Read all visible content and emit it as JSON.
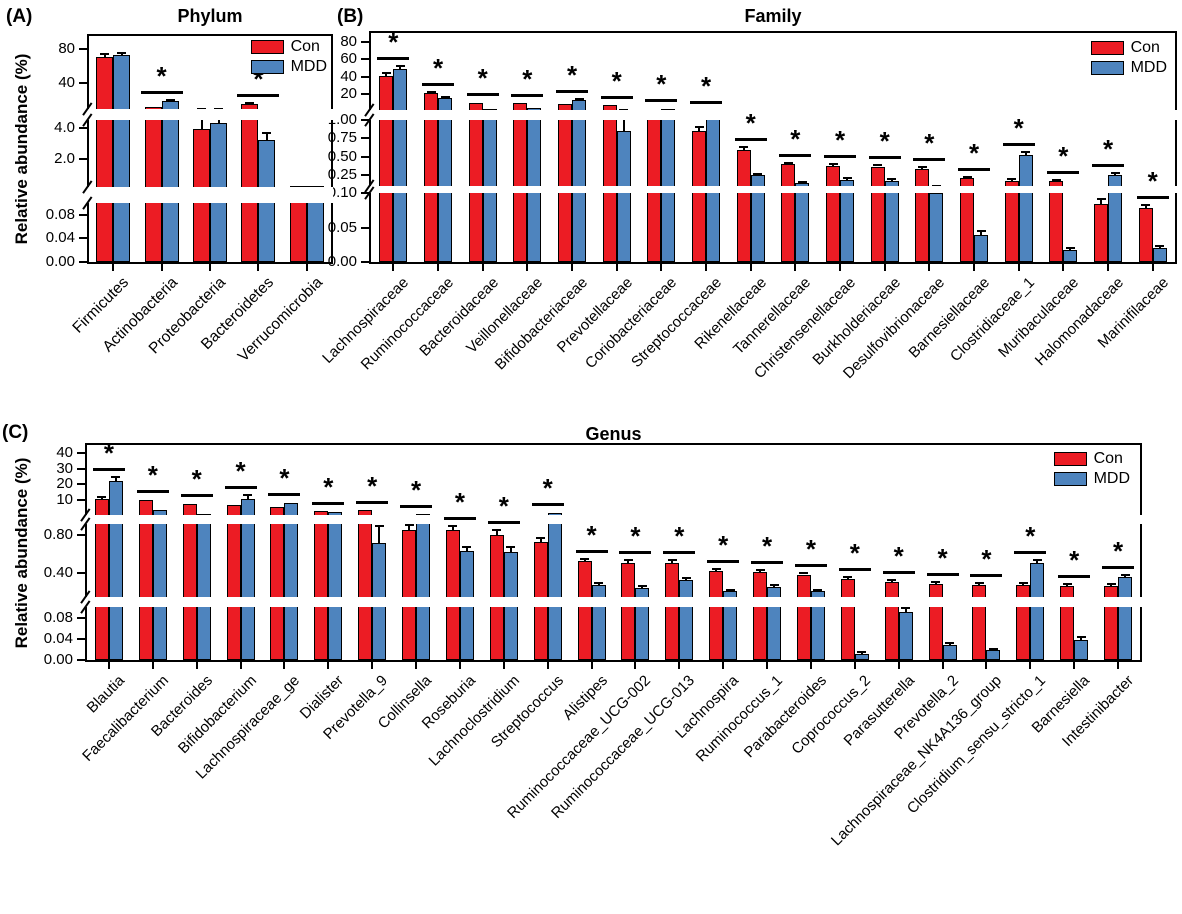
{
  "figure": {
    "background": "#ffffff",
    "con_color": "#EC1C24",
    "mdd_color": "#4E84BE",
    "error_bar_color": "#000000",
    "significance_marker": "*",
    "legend_labels": [
      "Con",
      "MDD"
    ]
  },
  "chart_data": [
    {
      "id": "A",
      "panel_label": "(A)",
      "title": "Phylum",
      "type": "bar",
      "ylabel": "Relative abundance (%)",
      "legend": {
        "entries": [
          "Con",
          "MDD"
        ],
        "position": "top-right"
      },
      "axis_break": true,
      "segments": [
        {
          "range": [
            0,
            0.1
          ],
          "frac": [
            0,
            0.261
          ],
          "ticks": [
            {
              "v": 0,
              "label": "0.00"
            },
            {
              "v": 0.04,
              "label": "0.04"
            },
            {
              "v": 0.08,
              "label": "0.08"
            }
          ]
        },
        {
          "range": [
            0.2,
            4.5
          ],
          "frac": [
            0.33,
            0.628
          ],
          "ticks": [
            {
              "v": 2.0,
              "label": "2.0"
            },
            {
              "v": 4.0,
              "label": "4.0"
            }
          ]
        },
        {
          "range": [
            10,
            95
          ],
          "frac": [
            0.677,
            1.0
          ],
          "ticks": [
            {
              "v": 40,
              "label": "40"
            },
            {
              "v": 80,
              "label": "80"
            }
          ]
        }
      ],
      "categories": [
        "Firmicutes",
        "Actinobacteria",
        "Proteobacteria",
        "Bacteroidetes",
        "Verrucomicrobia"
      ],
      "series": [
        {
          "name": "Con",
          "values": [
            71,
            12,
            3.9,
            16,
            0.32
          ],
          "errors": [
            2.5,
            0.8,
            0.85,
            1.0,
            0.03
          ]
        },
        {
          "name": "MDD",
          "values": [
            73,
            19,
            4.3,
            3.2,
            0.3
          ],
          "errors": [
            2.5,
            1.2,
            0.65,
            0.5,
            0.03
          ]
        }
      ],
      "significant": [
        false,
        true,
        false,
        true,
        false
      ]
    },
    {
      "id": "B",
      "panel_label": "(B)",
      "title": "Family",
      "type": "bar",
      "ylabel": "",
      "legend": {
        "entries": [
          "Con",
          "MDD"
        ],
        "position": "top-right"
      },
      "axis_break": true,
      "segments": [
        {
          "range": [
            0,
            0.1
          ],
          "frac": [
            0,
            0.3
          ],
          "ticks": [
            {
              "v": 0,
              "label": "0.00"
            },
            {
              "v": 0.05,
              "label": "0.05"
            },
            {
              "v": 0.1,
              "label": "0.10"
            }
          ]
        },
        {
          "range": [
            0.1,
            1.0
          ],
          "frac": [
            0.33,
            0.62
          ],
          "ticks": [
            {
              "v": 0.25,
              "label": "0.25"
            },
            {
              "v": 0.5,
              "label": "0.50"
            },
            {
              "v": 0.75,
              "label": "0.75"
            },
            {
              "v": 1.0,
              "label": "1.00"
            }
          ]
        },
        {
          "range": [
            1,
            85
          ],
          "frac": [
            0.662,
            0.98
          ],
          "ticks": [
            {
              "v": 20,
              "label": "20"
            },
            {
              "v": 40,
              "label": "40"
            },
            {
              "v": 60,
              "label": "60"
            },
            {
              "v": 80,
              "label": "80"
            }
          ]
        }
      ],
      "categories": [
        "Lachnospiraceae",
        "Ruminococcaceae",
        "Bacteroidaceae",
        "Veillonellaceae",
        "Bifidobacteriaceae",
        "Prevotellaceae",
        "Coriobacteriaceae",
        "Streptococcaceae",
        "Rikenellaceae",
        "Tannerellaceae",
        "Christensenellaceae",
        "Burkholderiaceae",
        "Desulfovibrionaceae",
        "Barnesiellaceae",
        "Clostridiaceae_1",
        "Muribaculaceae",
        "Halomonadaceae",
        "Marinifilaceae"
      ],
      "series": [
        {
          "name": "Con",
          "values": [
            41,
            21,
            10,
            9,
            8,
            7,
            1.5,
            0.85,
            0.6,
            0.4,
            0.38,
            0.37,
            0.34,
            0.21,
            0.18,
            0.175,
            0.085,
            0.078
          ],
          "errors": [
            3,
            1.5,
            0.8,
            0.7,
            0.6,
            0.6,
            0.15,
            0.05,
            0.03,
            0.02,
            0.03,
            0.02,
            0.02,
            0.015,
            0.015,
            0.012,
            0.006,
            0.005
          ]
        },
        {
          "name": "MDD",
          "values": [
            49,
            15,
            3,
            3.5,
            13,
            0.85,
            3,
            1.8,
            0.25,
            0.14,
            0.19,
            0.18,
            0.1,
            0.04,
            0.53,
            0.018,
            0.26,
            0.02
          ],
          "errors": [
            3,
            1,
            0.3,
            0.3,
            1.2,
            0.2,
            0.25,
            0.15,
            0.02,
            0.015,
            0.02,
            0.015,
            0.01,
            0.005,
            0.03,
            0.003,
            0.02,
            0.004
          ]
        }
      ],
      "significant": [
        true,
        true,
        true,
        true,
        true,
        true,
        true,
        true,
        true,
        true,
        true,
        true,
        true,
        true,
        true,
        true,
        true,
        true
      ]
    },
    {
      "id": "C",
      "panel_label": "(C)",
      "title": "Genus",
      "type": "bar",
      "ylabel": "Relative abundance (%)",
      "legend": {
        "entries": [
          "Con",
          "MDD"
        ],
        "position": "top-right"
      },
      "axis_break": true,
      "segments": [
        {
          "range": [
            0,
            0.1
          ],
          "frac": [
            0,
            0.247
          ],
          "ticks": [
            {
              "v": 0,
              "label": "0.00"
            },
            {
              "v": 0.04,
              "label": "0.04"
            },
            {
              "v": 0.08,
              "label": "0.08"
            }
          ]
        },
        {
          "range": [
            0.14,
            0.92
          ],
          "frac": [
            0.293,
            0.633
          ],
          "ticks": [
            {
              "v": 0.4,
              "label": "0.40"
            },
            {
              "v": 0.8,
              "label": "0.80"
            }
          ]
        },
        {
          "range": [
            0.5,
            45
          ],
          "frac": [
            0.674,
            1.0
          ],
          "ticks": [
            {
              "v": 10,
              "label": "10"
            },
            {
              "v": 20,
              "label": "20"
            },
            {
              "v": 30,
              "label": "30"
            },
            {
              "v": 40,
              "label": "40"
            }
          ]
        }
      ],
      "categories": [
        "Blautia",
        "Faecalibacterium",
        "Bacteroides",
        "Bifidobacterium",
        "Lachnospiraceae_ge",
        "Dialister",
        "Prevotella_9",
        "Collinsella",
        "Roseburia",
        "Lachnoclostridium",
        "Streptococcus",
        "Alistipes",
        "Ruminococcaceae_UCG-002",
        "Ruminococcaceae_UCG-013",
        "Lachnospira",
        "Ruminococcus_1",
        "Parabacteroides",
        "Coprococcus_2",
        "Parasutterella",
        "Prevotella_2",
        "Lachnospiraceae_NK4A136_group",
        "Clostridium_sensu_stricto_1",
        "Barnesiella",
        "Intestinibacter"
      ],
      "series": [
        {
          "name": "Con",
          "values": [
            11,
            10,
            7.5,
            7,
            5.5,
            3,
            3.5,
            0.86,
            0.85,
            0.8,
            0.73,
            0.52,
            0.5,
            0.5,
            0.42,
            0.41,
            0.38,
            0.33,
            0.3,
            0.28,
            0.27,
            0.27,
            0.26,
            0.26
          ],
          "errors": [
            0.7,
            0.5,
            0.5,
            0.4,
            0.3,
            0.2,
            0.3,
            0.05,
            0.05,
            0.06,
            0.04,
            0.03,
            0.03,
            0.03,
            0.02,
            0.02,
            0.02,
            0.02,
            0.02,
            0.015,
            0.015,
            0.015,
            0.015,
            0.015
          ]
        },
        {
          "name": "MDD",
          "values": [
            22,
            4,
            1.2,
            11,
            8,
            2.2,
            0.72,
            1.4,
            0.63,
            0.62,
            2.0,
            0.27,
            0.24,
            0.32,
            0.2,
            0.25,
            0.2,
            0.012,
            0.09,
            0.028,
            0.018,
            0.5,
            0.038,
            0.35
          ],
          "errors": [
            3,
            0.3,
            0.15,
            2,
            0.5,
            0.15,
            0.18,
            0.1,
            0.04,
            0.05,
            0.15,
            0.02,
            0.02,
            0.025,
            0.015,
            0.02,
            0.015,
            0.003,
            0.008,
            0.004,
            0.003,
            0.03,
            0.005,
            0.03
          ]
        }
      ],
      "significant": [
        true,
        true,
        true,
        true,
        true,
        true,
        true,
        true,
        true,
        true,
        true,
        true,
        true,
        true,
        true,
        true,
        true,
        true,
        true,
        true,
        true,
        true,
        true,
        true
      ]
    }
  ]
}
